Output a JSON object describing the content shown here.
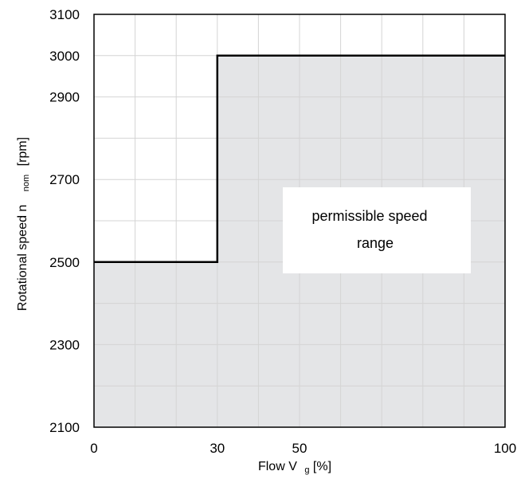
{
  "chart_data": {
    "type": "line",
    "x": [
      0,
      30,
      30,
      100
    ],
    "y": [
      2500,
      2500,
      3000,
      3000
    ],
    "xlim": [
      0,
      100
    ],
    "ylim": [
      2100,
      3100
    ],
    "x_tick_labels": [
      "0",
      "30",
      "50",
      "100"
    ],
    "x_ticks": [
      0,
      30,
      50,
      100
    ],
    "y_tick_labels": [
      "3100",
      "3000",
      "2900",
      "2700",
      "2500",
      "2300",
      "2100"
    ],
    "y_ticks": [
      3100,
      3000,
      2900,
      2700,
      2500,
      2300,
      2100
    ],
    "grid": true,
    "x_gridlines": [
      10,
      20,
      30,
      40,
      50,
      60,
      70,
      80,
      90
    ],
    "y_gridlines": [
      2200,
      2300,
      2400,
      2500,
      2600,
      2700,
      2800,
      2900,
      3000
    ],
    "xlabel_main": "Flow V",
    "xlabel_sub": "g",
    "xlabel_end": " [%]",
    "ylabel_main": "Rotational speed n",
    "ylabel_sub": "nom",
    "ylabel_end": " [rpm]",
    "annotation_line1": "permissible speed",
    "annotation_line2": "range",
    "colors": {
      "region_fill": "#e4e5e7",
      "line": "#000000",
      "grid": "#d4d4d4",
      "annotation_box": "#ffffff"
    }
  }
}
